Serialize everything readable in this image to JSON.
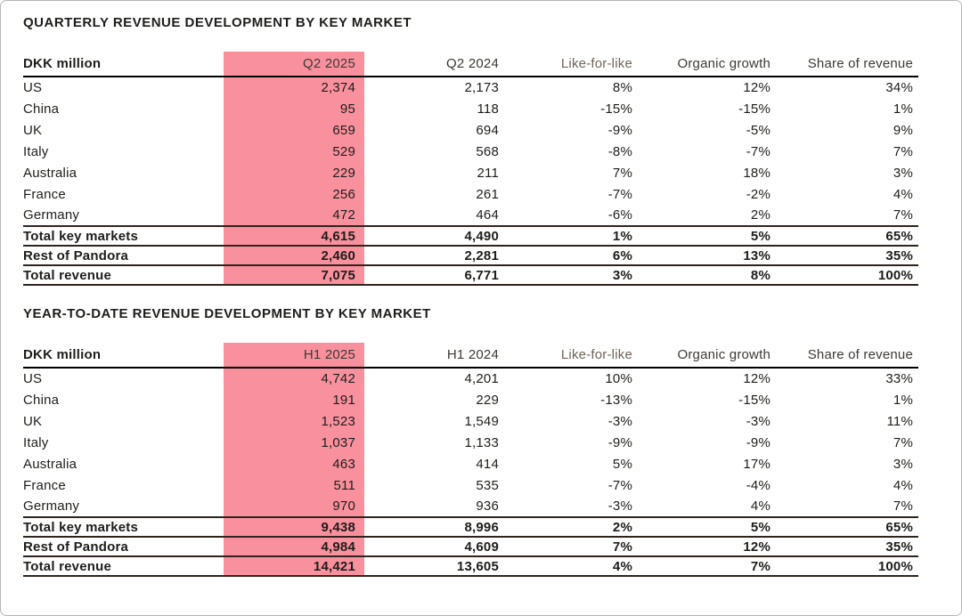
{
  "colors": {
    "highlight_pink": "#f8919d",
    "text": "#1d1d1b",
    "header_gray": "#3d3935",
    "like_for_like_header": "#6f6459",
    "header_rule": "#000000",
    "total_rule": "#2f241d",
    "page_border": "#b7b7b7"
  },
  "tables": [
    {
      "title": "QUARTERLY REVENUE DEVELOPMENT BY KEY MARKET",
      "columns": [
        "DKK million",
        "Q2 2025",
        "Q2 2024",
        "Like-for-like",
        "Organic growth",
        "Share of revenue"
      ],
      "rows": [
        [
          "US",
          "2,374",
          "2,173",
          "8%",
          "12%",
          "34%"
        ],
        [
          "China",
          "95",
          "118",
          "-15%",
          "-15%",
          "1%"
        ],
        [
          "UK",
          "659",
          "694",
          "-9%",
          "-5%",
          "9%"
        ],
        [
          "Italy",
          "529",
          "568",
          "-8%",
          "-7%",
          "7%"
        ],
        [
          "Australia",
          "229",
          "211",
          "7%",
          "18%",
          "3%"
        ],
        [
          "France",
          "256",
          "261",
          "-7%",
          "-2%",
          "4%"
        ],
        [
          "Germany",
          "472",
          "464",
          "-6%",
          "2%",
          "7%"
        ]
      ],
      "total_rows": [
        [
          "Total key markets",
          "4,615",
          "4,490",
          "1%",
          "5%",
          "65%"
        ],
        [
          "Rest of Pandora",
          "2,460",
          "2,281",
          "6%",
          "13%",
          "35%"
        ],
        [
          "Total revenue",
          "7,075",
          "6,771",
          "3%",
          "8%",
          "100%"
        ]
      ]
    },
    {
      "title": "YEAR-TO-DATE REVENUE DEVELOPMENT BY KEY MARKET",
      "columns": [
        "DKK million",
        "H1 2025",
        "H1 2024",
        "Like-for-like",
        "Organic growth",
        "Share of revenue"
      ],
      "rows": [
        [
          "US",
          "4,742",
          "4,201",
          "10%",
          "12%",
          "33%"
        ],
        [
          "China",
          "191",
          "229",
          "-13%",
          "-15%",
          "1%"
        ],
        [
          "UK",
          "1,523",
          "1,549",
          "-3%",
          "-3%",
          "11%"
        ],
        [
          "Italy",
          "1,037",
          "1,133",
          "-9%",
          "-9%",
          "7%"
        ],
        [
          "Australia",
          "463",
          "414",
          "5%",
          "17%",
          "3%"
        ],
        [
          "France",
          "511",
          "535",
          "-7%",
          "-4%",
          "4%"
        ],
        [
          "Germany",
          "970",
          "936",
          "-3%",
          "4%",
          "7%"
        ]
      ],
      "total_rows": [
        [
          "Total key markets",
          "9,438",
          "8,996",
          "2%",
          "5%",
          "65%"
        ],
        [
          "Rest of Pandora",
          "4,984",
          "4,609",
          "7%",
          "12%",
          "35%"
        ],
        [
          "Total revenue",
          "14,421",
          "13,605",
          "4%",
          "7%",
          "100%"
        ]
      ]
    }
  ]
}
